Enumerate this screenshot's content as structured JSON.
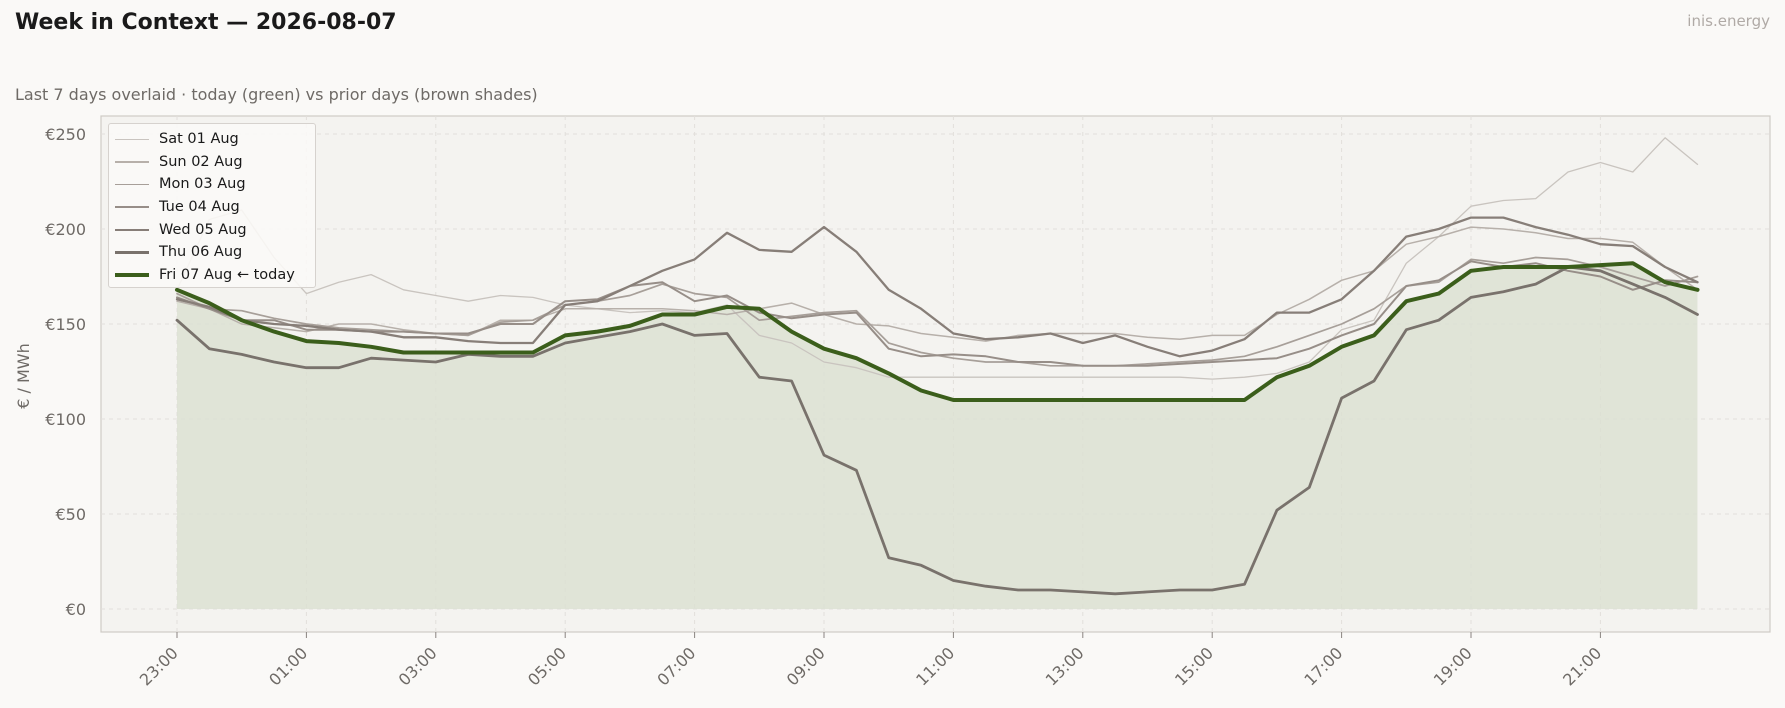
{
  "header": {
    "title": "Week in Context — 2026-08-07",
    "subtitle": "Last 7 days overlaid  ·  today (green) vs prior days (brown shades)",
    "brand": "inis.energy"
  },
  "chart_data": {
    "type": "line",
    "title": "Week in Context — 2026-08-07",
    "subtitle": "Last 7 days overlaid  ·  today (green) vs prior days (brown shades)",
    "xlabel": "",
    "ylabel": "€ / MWh",
    "ylim": [
      -12,
      260
    ],
    "y_ticks": [
      0,
      50,
      100,
      150,
      200,
      250
    ],
    "y_tick_labels": [
      "€0",
      "€50",
      "€100",
      "€150",
      "€200",
      "€250"
    ],
    "x": [
      "23:00",
      "23:30",
      "00:00",
      "00:30",
      "01:00",
      "01:30",
      "02:00",
      "02:30",
      "03:00",
      "03:30",
      "04:00",
      "04:30",
      "05:00",
      "05:30",
      "06:00",
      "06:30",
      "07:00",
      "07:30",
      "08:00",
      "08:30",
      "09:00",
      "09:30",
      "10:00",
      "10:30",
      "11:00",
      "11:30",
      "12:00",
      "12:30",
      "13:00",
      "13:30",
      "14:00",
      "14:30",
      "15:00",
      "15:30",
      "16:00",
      "16:30",
      "17:00",
      "17:30",
      "18:00",
      "18:30",
      "19:00",
      "19:30",
      "20:00",
      "20:30",
      "21:00",
      "21:30",
      "22:00",
      "22:30"
    ],
    "x_ticks": [
      "23:00",
      "01:00",
      "03:00",
      "05:00",
      "07:00",
      "09:00",
      "11:00",
      "13:00",
      "15:00",
      "17:00",
      "19:00",
      "21:00"
    ],
    "grid": true,
    "legend_position": "top-left",
    "series": [
      {
        "name": "Sat 01 Aug",
        "color": "#c9c4bf",
        "width": 1.3,
        "values": [
          168,
          205,
          210,
          185,
          166,
          172,
          176,
          168,
          165,
          162,
          165,
          164,
          160,
          158,
          156,
          157,
          156,
          160,
          144,
          140,
          130,
          127,
          122,
          122,
          122,
          122,
          122,
          122,
          122,
          122,
          122,
          122,
          121,
          122,
          124,
          130,
          147,
          152,
          182,
          196,
          212,
          215,
          216,
          230,
          235,
          230,
          248,
          234
        ]
      },
      {
        "name": "Sun 02 Aug",
        "color": "#b7b0aa",
        "width": 1.5,
        "values": [
          162,
          158,
          150,
          148,
          146,
          150,
          150,
          147,
          145,
          144,
          152,
          152,
          158,
          158,
          158,
          158,
          157,
          155,
          158,
          161,
          155,
          150,
          149,
          145,
          143,
          141,
          144,
          145,
          145,
          145,
          143,
          142,
          144,
          144,
          155,
          163,
          173,
          178,
          192,
          196,
          201,
          200,
          198,
          195,
          195,
          193,
          180,
          168
        ]
      },
      {
        "name": "Mon 03 Aug",
        "color": "#a79f99",
        "width": 1.7,
        "values": [
          166,
          158,
          157,
          153,
          150,
          148,
          147,
          146,
          145,
          144,
          151,
          152,
          160,
          162,
          165,
          171,
          166,
          164,
          152,
          154,
          156,
          157,
          140,
          135,
          132,
          130,
          130,
          128,
          128,
          128,
          129,
          130,
          131,
          133,
          138,
          144,
          150,
          158,
          170,
          172,
          184,
          182,
          185,
          184,
          180,
          175,
          170,
          175
        ]
      },
      {
        "name": "Tue 04 Aug",
        "color": "#978e88",
        "width": 2.0,
        "values": [
          164,
          158,
          152,
          152,
          147,
          147,
          146,
          146,
          145,
          145,
          150,
          150,
          162,
          163,
          170,
          172,
          162,
          165,
          156,
          153,
          155,
          156,
          137,
          133,
          134,
          133,
          130,
          130,
          128,
          128,
          128,
          129,
          130,
          131,
          132,
          137,
          144,
          150,
          170,
          173,
          183,
          180,
          182,
          178,
          175,
          168,
          173,
          172
        ]
      },
      {
        "name": "Wed 05 Aug",
        "color": "#877e78",
        "width": 2.3,
        "values": [
          163,
          159,
          152,
          150,
          149,
          147,
          146,
          143,
          143,
          141,
          140,
          140,
          160,
          162,
          170,
          178,
          184,
          198,
          189,
          188,
          201,
          188,
          168,
          158,
          145,
          142,
          143,
          145,
          140,
          144,
          138,
          133,
          136,
          142,
          156,
          156,
          163,
          178,
          196,
          200,
          206,
          206,
          201,
          197,
          192,
          191,
          180,
          172
        ]
      },
      {
        "name": "Thu 06 Aug",
        "color": "#79726c",
        "width": 2.8,
        "values": [
          152,
          137,
          134,
          130,
          127,
          127,
          132,
          131,
          130,
          134,
          133,
          133,
          140,
          143,
          146,
          150,
          144,
          145,
          122,
          120,
          81,
          73,
          27,
          23,
          15,
          12,
          10,
          10,
          9,
          8,
          9,
          10,
          10,
          13,
          52,
          64,
          111,
          120,
          147,
          152,
          164,
          167,
          171,
          180,
          178,
          171,
          164,
          155
        ]
      },
      {
        "name": "Fri 07 Aug",
        "color": "#3b5e1b",
        "width": 4.0,
        "today": true,
        "values": [
          168,
          161,
          152,
          146,
          141,
          140,
          138,
          135,
          135,
          135,
          135,
          135,
          144,
          146,
          149,
          155,
          155,
          159,
          158,
          146,
          137,
          132,
          124,
          115,
          110,
          110,
          110,
          110,
          110,
          110,
          110,
          110,
          110,
          110,
          122,
          128,
          138,
          144,
          162,
          166,
          178,
          180,
          180,
          180,
          181,
          182,
          172,
          168
        ]
      }
    ]
  },
  "legend": {
    "items": [
      {
        "label": "Sat 01 Aug"
      },
      {
        "label": "Sun 02 Aug"
      },
      {
        "label": "Mon 03 Aug"
      },
      {
        "label": "Tue 04 Aug"
      },
      {
        "label": "Wed 05 Aug"
      },
      {
        "label": "Thu 06 Aug"
      },
      {
        "label": "Fri 07 Aug  ← today"
      }
    ]
  },
  "colors": {
    "today": "#3b5e1b",
    "fill": "#dce0d2",
    "plot_background": "#f4f3f0"
  }
}
